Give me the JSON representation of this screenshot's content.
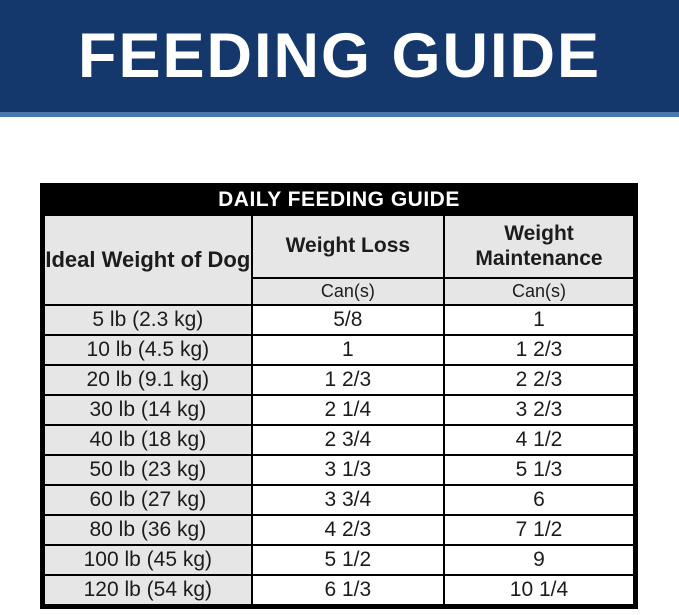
{
  "banner": {
    "title": "FEEDING GUIDE"
  },
  "chart_data": {
    "type": "table",
    "title": "DAILY FEEDING GUIDE",
    "columns": {
      "weight_header": "Ideal Weight of Dog",
      "loss_header": "Weight Loss",
      "maintenance_header": "Weight Maintenance",
      "unit_label": "Can(s)"
    },
    "rows": [
      {
        "weight": "5 lb (2.3 kg)",
        "loss": "5/8",
        "maintenance": "1"
      },
      {
        "weight": "10 lb (4.5 kg)",
        "loss": "1",
        "maintenance": "1 2/3"
      },
      {
        "weight": "20 lb (9.1 kg)",
        "loss": "1 2/3",
        "maintenance": "2 2/3"
      },
      {
        "weight": "30 lb (14 kg)",
        "loss": "2 1/4",
        "maintenance": "3 2/3"
      },
      {
        "weight": "40 lb (18 kg)",
        "loss": "2 3/4",
        "maintenance": "4 1/2"
      },
      {
        "weight": "50 lb (23 kg)",
        "loss": "3 1/3",
        "maintenance": "5 1/3"
      },
      {
        "weight": "60 lb (27 kg)",
        "loss": "3 3/4",
        "maintenance": "6"
      },
      {
        "weight": "80 lb (36 kg)",
        "loss": "4 2/3",
        "maintenance": "7 1/2"
      },
      {
        "weight": "100 lb (45 kg)",
        "loss": "5 1/2",
        "maintenance": "9"
      },
      {
        "weight": "120 lb (54 kg)",
        "loss": "6 1/3",
        "maintenance": "10 1/4"
      }
    ]
  },
  "colors": {
    "banner_bg": "#14386c",
    "banner_underline": "#4a77ac",
    "banner_text": "#ffffff",
    "table_title_bg": "#000000",
    "table_title_text": "#ffffff",
    "header_cell_bg": "#e6e6e6",
    "data_cell_bg": "#ffffff",
    "border": "#000000",
    "text": "#1c1c1c"
  }
}
